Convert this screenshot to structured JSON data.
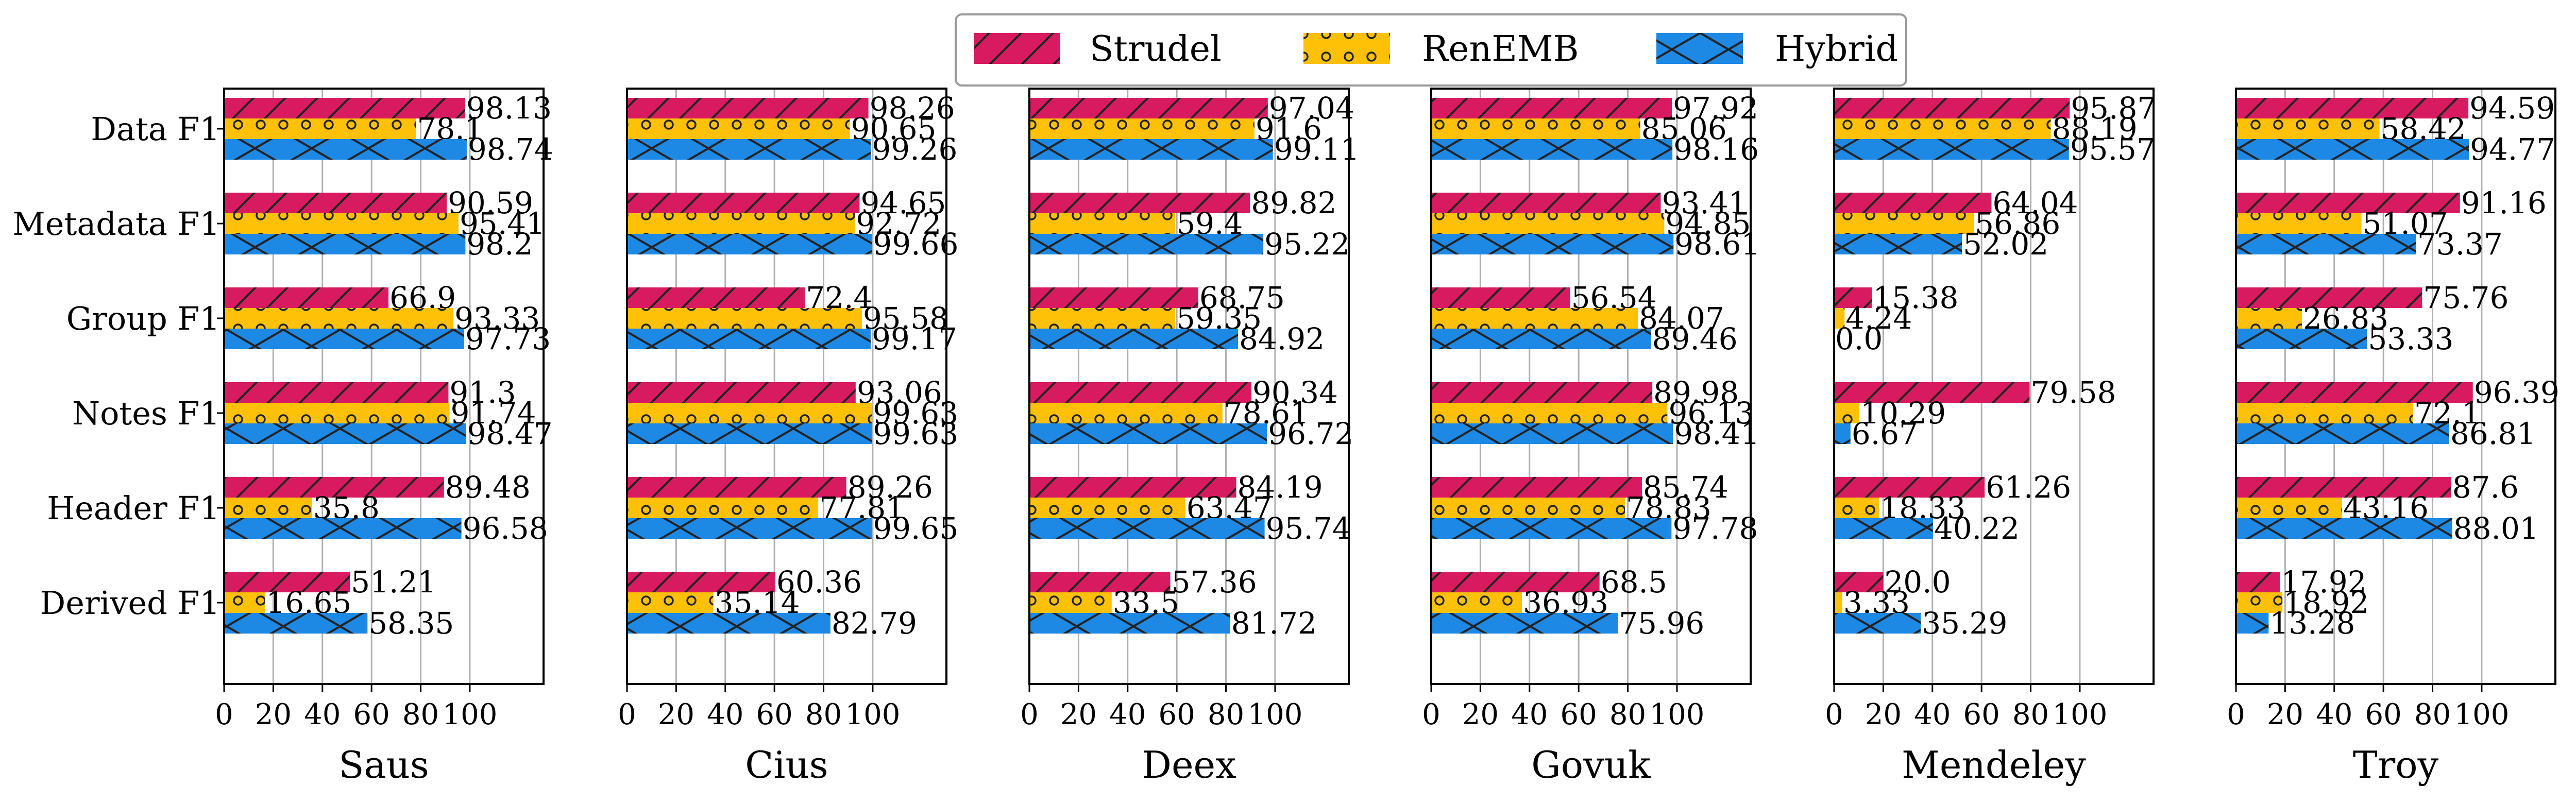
{
  "chart_data": {
    "type": "bar",
    "orientation": "horizontal",
    "categories": [
      "Data F1",
      "Metadata F1",
      "Group F1",
      "Notes F1",
      "Header F1",
      "Derived F1"
    ],
    "series_styles": [
      {
        "name": "Strudel",
        "color": "#d81b60",
        "hatch": "diagonal-lines"
      },
      {
        "name": "RenEMB",
        "color": "#ffc107",
        "hatch": "circles"
      },
      {
        "name": "Hybrid",
        "color": "#1e88e5",
        "hatch": "crosses"
      }
    ],
    "legend_position": "top-center",
    "grid": "vertical",
    "xlim": [
      0,
      130
    ],
    "xticks": [
      0,
      20,
      40,
      60,
      80,
      100
    ],
    "panels": [
      {
        "title": "Saus",
        "series": [
          {
            "name": "Strudel",
            "values": [
              98.13,
              90.59,
              66.9,
              91.3,
              89.48,
              51.21
            ]
          },
          {
            "name": "RenEMB",
            "values": [
              78.1,
              95.41,
              93.33,
              91.74,
              35.8,
              16.65
            ]
          },
          {
            "name": "Hybrid",
            "values": [
              98.74,
              98.2,
              97.73,
              98.47,
              96.58,
              58.35
            ]
          }
        ]
      },
      {
        "title": "Cius",
        "series": [
          {
            "name": "Strudel",
            "values": [
              98.26,
              94.65,
              72.4,
              93.06,
              89.26,
              60.36
            ]
          },
          {
            "name": "RenEMB",
            "values": [
              90.65,
              92.72,
              95.58,
              99.63,
              77.81,
              35.14
            ]
          },
          {
            "name": "Hybrid",
            "values": [
              99.26,
              99.66,
              99.17,
              99.63,
              99.65,
              82.79
            ]
          }
        ]
      },
      {
        "title": "Deex",
        "series": [
          {
            "name": "Strudel",
            "values": [
              97.04,
              89.82,
              68.75,
              90.34,
              84.19,
              57.36
            ]
          },
          {
            "name": "RenEMB",
            "values": [
              91.6,
              59.4,
              59.35,
              78.61,
              63.47,
              33.5
            ]
          },
          {
            "name": "Hybrid",
            "values": [
              99.11,
              95.22,
              84.92,
              96.72,
              95.74,
              81.72
            ]
          }
        ]
      },
      {
        "title": "Govuk",
        "series": [
          {
            "name": "Strudel",
            "values": [
              97.92,
              93.41,
              56.54,
              89.98,
              85.74,
              68.5
            ]
          },
          {
            "name": "RenEMB",
            "values": [
              85.06,
              94.85,
              84.07,
              96.13,
              78.83,
              36.93
            ]
          },
          {
            "name": "Hybrid",
            "values": [
              98.16,
              98.61,
              89.46,
              98.41,
              97.78,
              75.96
            ]
          }
        ]
      },
      {
        "title": "Mendeley",
        "series": [
          {
            "name": "Strudel",
            "values": [
              95.87,
              64.04,
              15.38,
              79.58,
              61.26,
              20.0
            ]
          },
          {
            "name": "RenEMB",
            "values": [
              88.19,
              56.86,
              4.24,
              10.29,
              18.33,
              3.33
            ]
          },
          {
            "name": "Hybrid",
            "values": [
              95.57,
              52.02,
              0.0,
              6.67,
              40.22,
              35.29
            ]
          }
        ]
      },
      {
        "title": "Troy",
        "series": [
          {
            "name": "Strudel",
            "values": [
              94.59,
              91.16,
              75.76,
              96.39,
              87.6,
              17.92
            ]
          },
          {
            "name": "RenEMB",
            "values": [
              58.42,
              51.07,
              26.83,
              72.1,
              43.16,
              18.92
            ]
          },
          {
            "name": "Hybrid",
            "values": [
              94.77,
              73.37,
              53.33,
              86.81,
              88.01,
              13.28
            ]
          }
        ]
      }
    ],
    "value_labels": [
      [
        [
          "98.13",
          "90.59",
          "66.9",
          "91.3",
          "89.48",
          "51.21"
        ],
        [
          "78.1",
          "95.41",
          "93.33",
          "91.74",
          "35.8",
          "16.65"
        ],
        [
          "98.74",
          "98.2",
          "97.73",
          "98.47",
          "96.58",
          "58.35"
        ]
      ],
      [
        [
          "98.26",
          "94.65",
          "72.4",
          "93.06",
          "89.26",
          "60.36"
        ],
        [
          "90.65",
          "92.72",
          "95.58",
          "99.63",
          "77.81",
          "35.14"
        ],
        [
          "99.26",
          "99.66",
          "99.17",
          "99.63",
          "99.65",
          "82.79"
        ]
      ],
      [
        [
          "97.04",
          "89.82",
          "68.75",
          "90.34",
          "84.19",
          "57.36"
        ],
        [
          "91.6",
          "59.4",
          "59.35",
          "78.61",
          "63.47",
          "33.5"
        ],
        [
          "99.11",
          "95.22",
          "84.92",
          "96.72",
          "95.74",
          "81.72"
        ]
      ],
      [
        [
          "97.92",
          "93.41",
          "56.54",
          "89.98",
          "85.74",
          "68.5"
        ],
        [
          "85.06",
          "94.85",
          "84.07",
          "96.13",
          "78.83",
          "36.93"
        ],
        [
          "98.16",
          "98.61",
          "89.46",
          "98.41",
          "97.78",
          "75.96"
        ]
      ],
      [
        [
          "95.87",
          "64.04",
          "15.38",
          "79.58",
          "61.26",
          "20.0"
        ],
        [
          "88.19",
          "56.86",
          "4.24",
          "10.29",
          "18.33",
          "3.33"
        ],
        [
          "95.57",
          "52.02",
          "0.0",
          "6.67",
          "40.22",
          "35.29"
        ]
      ],
      [
        [
          "94.59",
          "91.16",
          "75.76",
          "96.39",
          "87.6",
          "17.92"
        ],
        [
          "58.42",
          "51.07",
          "26.83",
          "72.1",
          "43.16",
          "18.92"
        ],
        [
          "94.77",
          "73.37",
          "53.33",
          "86.81",
          "88.01",
          "13.28"
        ]
      ]
    ]
  }
}
